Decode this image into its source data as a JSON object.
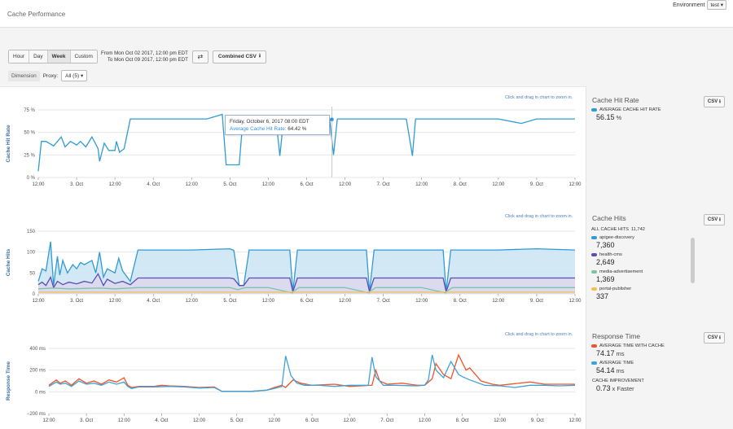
{
  "header": {
    "title": "Cache Performance",
    "environment_label": "Environment",
    "environment_value": "test",
    "dropdown_caret": "▾"
  },
  "toolbar": {
    "ranges": [
      "Hour",
      "Day",
      "Week",
      "Custom"
    ],
    "active_range": "Week",
    "from_text": "From Mon Oct 02 2017, 12:00 pm EDT",
    "to_text": "To Mon Oct 09 2017, 12:00 pm EDT",
    "swap_icon": "⇄",
    "combined_csv_label": "Combined CSV",
    "download_icon": "⭳"
  },
  "filter": {
    "dimension_label": "Dimension",
    "proxy_label": "Proxy:",
    "proxy_value": "All (5)"
  },
  "zoom_hint": "Click and drag in chart to zoom in.",
  "x_axis_ticks": [
    "12:00",
    "3. Oct",
    "12:00",
    "4. Oct",
    "12:00",
    "5. Oct",
    "12:00",
    "6. Oct",
    "12:00",
    "7. Oct",
    "12:00",
    "8. Oct",
    "12:00",
    "9. Oct",
    "12:00"
  ],
  "colors": {
    "blue": "#2f9bd6",
    "purple": "#5a4db3",
    "green": "#7cc4a6",
    "yellow": "#f2c14e",
    "orange": "#f0542b",
    "teal": "#3fa2d6",
    "grid": "#e6e6e6",
    "fill_blue": "#cde5f3",
    "fill_purple": "#ddd8ee"
  },
  "chart_data": [
    {
      "type": "line",
      "title": "Cache Hit Rate",
      "ylabel": "Cache Hit Rate",
      "ylim": [
        0,
        75
      ],
      "yticks": [
        "0 %",
        "25 %",
        "50 %",
        "75 %"
      ],
      "ytick_values": [
        0,
        25,
        50,
        75
      ],
      "x_range": [
        0,
        7
      ],
      "series": [
        {
          "name": "Average Cache Hit Rate",
          "x": [
            0,
            0.04,
            0.1,
            0.2,
            0.3,
            0.35,
            0.42,
            0.5,
            0.55,
            0.62,
            0.7,
            0.78,
            0.8,
            0.86,
            0.92,
            1.0,
            1.02,
            1.06,
            1.12,
            1.2,
            1.3,
            1.33,
            1.4,
            1.45,
            1.6,
            2.0,
            2.2,
            2.4,
            2.45,
            2.5,
            2.62,
            2.66,
            2.7,
            2.8,
            3.0,
            3.1,
            3.15,
            3.2,
            3.3,
            3.5,
            3.6,
            3.7,
            3.8,
            3.85,
            3.9,
            4.0,
            4.3,
            4.5,
            4.8,
            4.88,
            4.92,
            5.0,
            5.1,
            5.2,
            5.5,
            5.8,
            6.0,
            6.3,
            6.5,
            6.8,
            7.0
          ],
          "values": [
            7,
            40,
            40,
            35,
            45,
            34,
            40,
            36,
            40,
            34,
            45,
            32,
            18,
            38,
            30,
            30,
            40,
            28,
            32,
            65,
            65,
            65,
            65,
            65,
            65,
            65,
            65,
            70,
            14,
            14,
            14,
            55,
            65,
            65,
            65,
            65,
            24,
            65,
            65,
            65,
            65,
            65,
            65,
            25,
            65,
            65,
            65,
            65,
            65,
            24,
            65,
            65,
            65,
            65,
            65,
            65,
            65,
            60,
            65,
            65,
            65
          ]
        }
      ],
      "tooltip": {
        "date": "Friday, October 6, 2017 08:00 EDT",
        "label": "Average Cache Hit Rate",
        "value": "64.42 %"
      },
      "legend": {
        "name": "AVERAGE CACHE HIT RATE",
        "value": "56.15",
        "unit": "%"
      }
    },
    {
      "type": "area",
      "title": "Cache Hits",
      "ylabel": "Cache Hits",
      "ylim": [
        0,
        150
      ],
      "yticks": [
        "0",
        "50",
        "100",
        "150"
      ],
      "ytick_values": [
        0,
        50,
        100,
        150
      ],
      "x_range": [
        0,
        7
      ],
      "series": [
        {
          "name": "apigee-discovery",
          "x": [
            0,
            0.05,
            0.1,
            0.16,
            0.2,
            0.25,
            0.28,
            0.32,
            0.38,
            0.45,
            0.5,
            0.55,
            0.6,
            0.7,
            0.75,
            0.8,
            0.85,
            0.9,
            1.0,
            1.05,
            1.1,
            1.2,
            1.3,
            1.6,
            2.0,
            2.5,
            2.55,
            2.62,
            2.68,
            2.75,
            3.0,
            3.28,
            3.32,
            3.38,
            3.5,
            4.0,
            4.28,
            4.32,
            4.38,
            4.6,
            5.0,
            5.28,
            5.32,
            5.38,
            5.5,
            6.0,
            6.5,
            7.0
          ],
          "values": [
            30,
            60,
            55,
            125,
            20,
            90,
            45,
            80,
            50,
            70,
            60,
            75,
            70,
            80,
            50,
            100,
            40,
            60,
            50,
            85,
            55,
            30,
            105,
            105,
            105,
            108,
            104,
            20,
            20,
            105,
            105,
            105,
            5,
            105,
            105,
            105,
            105,
            5,
            105,
            105,
            105,
            105,
            5,
            105,
            105,
            105,
            108,
            105
          ]
        },
        {
          "name": "health-cms",
          "x": [
            0,
            0.05,
            0.1,
            0.16,
            0.2,
            0.25,
            0.32,
            0.4,
            0.5,
            0.6,
            0.7,
            0.78,
            0.85,
            0.9,
            1.0,
            1.1,
            1.2,
            1.3,
            1.6,
            2.0,
            2.5,
            2.55,
            2.62,
            2.68,
            2.75,
            3.0,
            3.28,
            3.32,
            3.38,
            3.5,
            4.0,
            4.28,
            4.32,
            4.38,
            4.6,
            5.0,
            5.28,
            5.32,
            5.38,
            5.5,
            6.0,
            6.5,
            7.0
          ],
          "values": [
            22,
            28,
            20,
            40,
            15,
            30,
            22,
            28,
            24,
            30,
            26,
            48,
            20,
            35,
            25,
            30,
            22,
            38,
            38,
            38,
            38,
            36,
            20,
            20,
            38,
            38,
            38,
            5,
            38,
            38,
            38,
            38,
            5,
            38,
            38,
            38,
            38,
            5,
            38,
            38,
            38,
            38,
            38
          ]
        },
        {
          "name": "media-advertisement",
          "x": [
            0,
            0.2,
            0.4,
            0.6,
            0.8,
            1.0,
            1.3,
            1.6,
            2.0,
            2.5,
            2.6,
            2.7,
            3.0,
            3.3,
            3.4,
            4.0,
            4.3,
            4.4,
            5.0,
            5.3,
            5.4,
            6.0,
            6.5,
            7.0
          ],
          "values": [
            12,
            14,
            12,
            13,
            14,
            12,
            15,
            15,
            15,
            15,
            10,
            15,
            15,
            3,
            15,
            15,
            3,
            15,
            15,
            3,
            15,
            15,
            15,
            15
          ]
        },
        {
          "name": "portal-publisher",
          "x": [
            0,
            1.0,
            2.0,
            3.0,
            4.0,
            5.0,
            6.0,
            7.0
          ],
          "values": [
            4,
            4,
            4,
            4,
            4,
            4,
            4,
            4
          ]
        }
      ],
      "legend": {
        "total_label": "ALL CACHE HITS",
        "total_value": "11,742",
        "items": [
          {
            "name": "apigee-discovery",
            "value": "7,360"
          },
          {
            "name": "health-cms",
            "value": "2,649"
          },
          {
            "name": "media-advertisement",
            "value": "1,369"
          },
          {
            "name": "portal-publisher",
            "value": "337"
          }
        ]
      }
    },
    {
      "type": "line",
      "title": "Response Time",
      "ylabel": "Response Time",
      "ylim": [
        -200,
        400
      ],
      "yticks": [
        "−200 ms",
        "0 ms",
        "200 ms",
        "400 ms"
      ],
      "ytick_values": [
        -200,
        0,
        200,
        400
      ],
      "x_range": [
        0,
        7
      ],
      "series": [
        {
          "name": "Average Time With Cache",
          "x": [
            0,
            0.1,
            0.15,
            0.22,
            0.3,
            0.4,
            0.5,
            0.6,
            0.7,
            0.8,
            0.9,
            1.0,
            1.05,
            1.1,
            1.2,
            1.4,
            1.5,
            1.6,
            1.8,
            2.0,
            2.2,
            2.3,
            2.5,
            2.7,
            2.9,
            3.0,
            3.1,
            3.15,
            3.25,
            3.35,
            3.5,
            3.8,
            4.0,
            4.3,
            4.35,
            4.4,
            4.5,
            4.7,
            4.9,
            5.0,
            5.1,
            5.15,
            5.25,
            5.35,
            5.45,
            5.55,
            5.6,
            5.75,
            5.9,
            6.0,
            6.2,
            6.4,
            6.6,
            6.8,
            7.0
          ],
          "values": [
            60,
            110,
            80,
            100,
            60,
            120,
            80,
            100,
            70,
            110,
            90,
            130,
            60,
            40,
            50,
            50,
            60,
            55,
            50,
            40,
            45,
            5,
            5,
            5,
            15,
            40,
            60,
            40,
            110,
            80,
            60,
            70,
            50,
            60,
            200,
            100,
            70,
            80,
            60,
            60,
            120,
            260,
            160,
            120,
            340,
            200,
            220,
            100,
            70,
            60,
            75,
            90,
            70,
            70,
            70
          ]
        },
        {
          "name": "Average Time",
          "x": [
            0,
            0.1,
            0.15,
            0.22,
            0.3,
            0.4,
            0.5,
            0.6,
            0.7,
            0.8,
            0.9,
            1.0,
            1.05,
            1.1,
            1.2,
            1.4,
            1.6,
            1.8,
            2.0,
            2.2,
            2.3,
            2.5,
            2.7,
            2.9,
            3.0,
            3.1,
            3.15,
            3.22,
            3.3,
            3.4,
            3.6,
            3.8,
            4.0,
            4.25,
            4.3,
            4.35,
            4.45,
            4.6,
            4.9,
            5.0,
            5.05,
            5.1,
            5.15,
            5.25,
            5.35,
            5.45,
            5.5,
            5.6,
            5.8,
            6.0,
            6.2,
            6.4,
            6.6,
            6.8,
            7.0
          ],
          "values": [
            50,
            90,
            70,
            80,
            50,
            100,
            70,
            80,
            60,
            90,
            70,
            90,
            50,
            30,
            45,
            45,
            50,
            45,
            35,
            40,
            5,
            5,
            5,
            15,
            30,
            50,
            330,
            150,
            80,
            60,
            60,
            50,
            60,
            60,
            320,
            140,
            60,
            60,
            55,
            60,
            110,
            340,
            200,
            130,
            280,
            160,
            140,
            110,
            60,
            55,
            40,
            60,
            60,
            55,
            60
          ]
        }
      ],
      "legend": {
        "with_cache_label": "AVERAGE TIME WITH CACHE",
        "with_cache_value": "74.17",
        "avg_label": "AVERAGE TIME",
        "avg_value": "54.14",
        "unit": "ms",
        "improvement_label": "CACHE IMPROVEMENT",
        "improvement_value": "0.73",
        "improvement_suffix": "x Faster"
      }
    }
  ],
  "panels": {
    "csv_label": "CSV"
  }
}
